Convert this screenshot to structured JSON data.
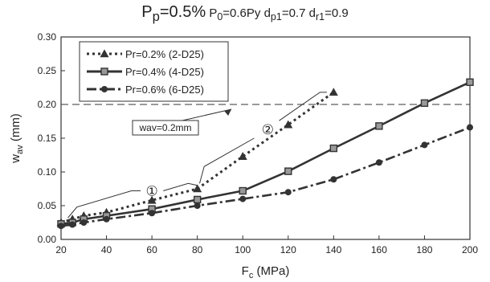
{
  "chart_data": {
    "type": "line",
    "title": {
      "main": "P",
      "main_sub": "p",
      "main_rest": "=0.5%",
      "p0": "P",
      "p0_sub": "0",
      "p0_rest": "=0.6Py",
      "dp1": "d",
      "dp1_sub": "p1",
      "dp1_rest": "=0.7",
      "dr1": "d",
      "dr1_sub": "r1",
      "dr1_rest": "=0.9"
    },
    "xlabel": {
      "main": "F",
      "sub": "c",
      "unit": "(MPa)"
    },
    "ylabel": {
      "main": "w",
      "sub": "av",
      "unit": "(mm)"
    },
    "xlim": [
      20,
      200
    ],
    "ylim": [
      0,
      0.3
    ],
    "xticks": [
      "20",
      "40",
      "60",
      "80",
      "100",
      "120",
      "140",
      "160",
      "180",
      "200"
    ],
    "yticks": [
      "0.00",
      "0.05",
      "0.10",
      "0.15",
      "0.20",
      "0.25",
      "0.30"
    ],
    "grid": false,
    "legend_position": "top-left",
    "series": [
      {
        "name": "Pr=0.2% (2-D25)",
        "marker": "triangle",
        "dash": "dotted",
        "color": "#333333",
        "x": [
          20,
          25,
          30,
          40,
          60,
          80,
          100,
          120,
          140
        ],
        "y": [
          0.025,
          0.03,
          0.035,
          0.04,
          0.058,
          0.075,
          0.123,
          0.17,
          0.218
        ]
      },
      {
        "name": "Pr=0.4% (4-D25)",
        "marker": "square",
        "dash": "solid",
        "color": "#333333",
        "x": [
          20,
          25,
          30,
          40,
          60,
          80,
          100,
          120,
          140,
          160,
          180,
          200
        ],
        "y": [
          0.023,
          0.025,
          0.03,
          0.035,
          0.045,
          0.059,
          0.072,
          0.101,
          0.135,
          0.168,
          0.202,
          0.233
        ]
      },
      {
        "name": "Pr=0.6% (6-D25)",
        "marker": "circle",
        "dash": "dashdot",
        "color": "#333333",
        "x": [
          20,
          25,
          30,
          40,
          60,
          80,
          100,
          120,
          140,
          160,
          180,
          200
        ],
        "y": [
          0.02,
          0.022,
          0.025,
          0.03,
          0.039,
          0.05,
          0.06,
          0.07,
          0.089,
          0.114,
          0.14,
          0.166
        ]
      }
    ],
    "reference_line": {
      "y": 0.2,
      "label": "wav=0.2mm"
    },
    "annotations": [
      {
        "label": "①",
        "x_range": [
          20,
          80
        ]
      },
      {
        "label": "②",
        "x_range": [
          80,
          140
        ]
      }
    ]
  }
}
